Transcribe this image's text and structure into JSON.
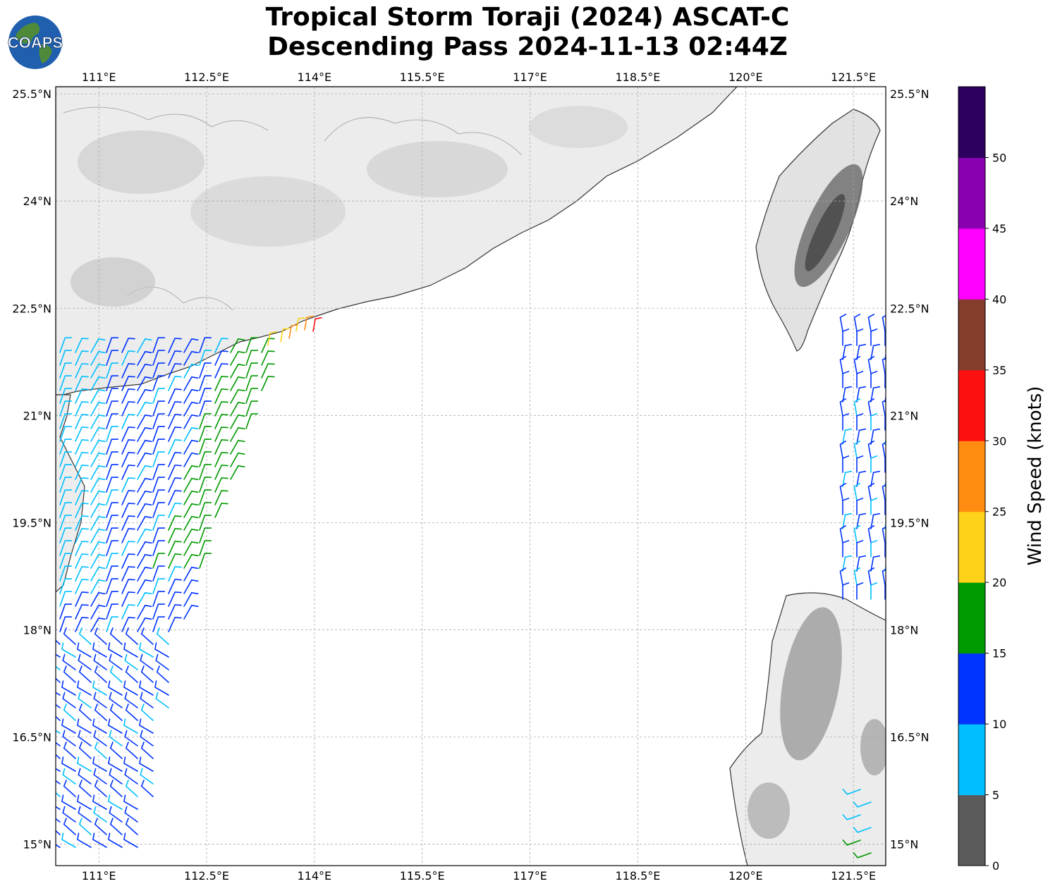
{
  "title": {
    "line1": "Tropical Storm Toraji (2024) ASCAT-C",
    "line2": "Descending Pass 2024-11-13 02:44Z"
  },
  "logo": {
    "text": "COAPS",
    "ocean_color": "#1f5fae",
    "land_color": "#4f8a3a"
  },
  "map": {
    "lon_range": [
      110.4,
      121.95
    ],
    "lat_range": [
      14.7,
      25.6
    ],
    "lon_ticks": [
      "111°E",
      "112.5°E",
      "114°E",
      "115.5°E",
      "117°E",
      "118.5°E",
      "120°E",
      "121.5°E"
    ],
    "lat_ticks": [
      "25.5°N",
      "24°N",
      "22.5°N",
      "21°N",
      "19.5°N",
      "18°N",
      "16.5°N",
      "15°N"
    ],
    "lon_values": [
      111,
      112.5,
      114,
      115.5,
      117,
      118.5,
      120,
      121.5
    ],
    "lat_values": [
      25.5,
      24,
      22.5,
      21,
      19.5,
      18,
      16.5,
      15
    ],
    "land_shading": "grayscale terrain",
    "gridlines": "dashed gray"
  },
  "colorbar": {
    "title": "Wind Speed (knots)",
    "tick_labels": [
      "0",
      "5",
      "10",
      "15",
      "20",
      "25",
      "30",
      "35",
      "40",
      "45",
      "50"
    ],
    "colors": [
      "#5a5a5a",
      "#00bfff",
      "#0033ff",
      "#009900",
      "#ffd21a",
      "#ff8c10",
      "#ff1010",
      "#843c2c",
      "#ff00ff",
      "#8800b0",
      "#2d0060"
    ]
  }
}
